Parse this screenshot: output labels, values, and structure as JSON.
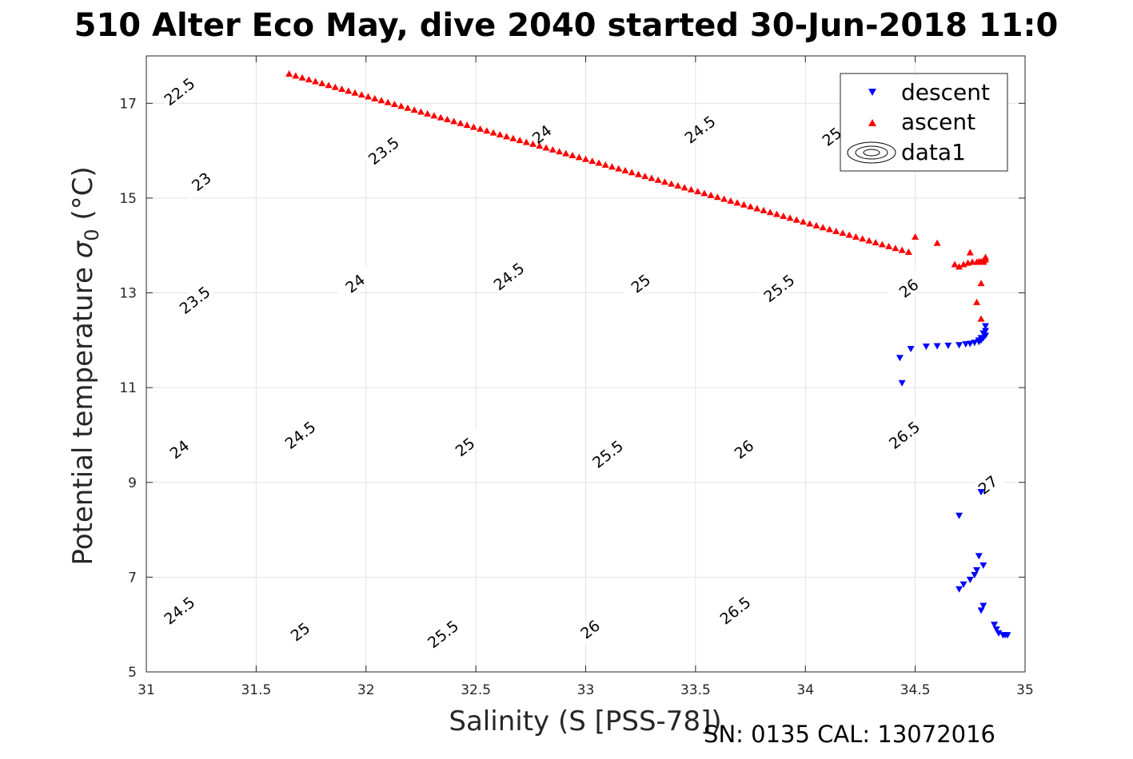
{
  "colors": {
    "descent": "#0000ff",
    "ascent": "#ff0000",
    "contour": "#000000",
    "grid": "#e3e3e3",
    "axis": "#262626"
  },
  "chart_data": {
    "type": "scatter",
    "title": "510 Alter Eco May, dive 2040 started 30-Jun-2018 11:0",
    "xlabel": "Salinity (S [PSS-78])",
    "ylabel_main": "Potential temperature ",
    "ylabel_symbol": "σ",
    "ylabel_sub": "0",
    "ylabel_unit": " (°C)",
    "footer": "SN: 0135  CAL: 13072016",
    "xlim": [
      31,
      35
    ],
    "ylim": [
      5,
      18
    ],
    "xticks": [
      31,
      31.5,
      32,
      32.5,
      33,
      33.5,
      34,
      34.5,
      35
    ],
    "yticks": [
      5,
      7,
      9,
      11,
      13,
      15,
      17
    ],
    "xtick_labels": [
      "31",
      "31.5",
      "32",
      "32.5",
      "33",
      "33.5",
      "34",
      "34.5",
      "35"
    ],
    "ytick_labels": [
      "5",
      "7",
      "9",
      "11",
      "13",
      "15",
      "17"
    ],
    "grid": true,
    "legend_position": "top-right",
    "contour_levels": [
      22.5,
      23,
      23.5,
      24,
      24.5,
      25,
      25.5,
      26,
      26.5,
      27
    ],
    "contour_labels": [
      {
        "text": "22.5",
        "s": 31.15,
        "t": 17.25
      },
      {
        "text": "23",
        "s": 31.25,
        "t": 15.35
      },
      {
        "text": "23.5",
        "s": 31.22,
        "t": 12.85
      },
      {
        "text": "24",
        "s": 31.15,
        "t": 9.7
      },
      {
        "text": "24.5",
        "s": 31.15,
        "t": 6.3
      },
      {
        "text": "23.5",
        "s": 32.08,
        "t": 16.0
      },
      {
        "text": "24",
        "s": 31.95,
        "t": 13.2
      },
      {
        "text": "24.5",
        "s": 31.7,
        "t": 10.0
      },
      {
        "text": "25",
        "s": 31.7,
        "t": 5.85
      },
      {
        "text": "24",
        "s": 32.8,
        "t": 16.35
      },
      {
        "text": "24.5",
        "s": 32.65,
        "t": 13.35
      },
      {
        "text": "25",
        "s": 32.45,
        "t": 9.75
      },
      {
        "text": "25.5",
        "s": 32.35,
        "t": 5.8
      },
      {
        "text": "24.5",
        "s": 33.52,
        "t": 16.45
      },
      {
        "text": "25",
        "s": 33.25,
        "t": 13.2
      },
      {
        "text": "25.5",
        "s": 33.1,
        "t": 9.6
      },
      {
        "text": "26",
        "s": 33.02,
        "t": 5.9
      },
      {
        "text": "25",
        "s": 34.12,
        "t": 16.3
      },
      {
        "text": "25.5",
        "s": 33.88,
        "t": 13.1
      },
      {
        "text": "26",
        "s": 33.72,
        "t": 9.7
      },
      {
        "text": "26.5",
        "s": 33.68,
        "t": 6.3
      },
      {
        "text": "26",
        "s": 34.47,
        "t": 13.1
      },
      {
        "text": "26.5",
        "s": 34.45,
        "t": 10.0
      },
      {
        "text": "27",
        "s": 34.83,
        "t": 8.95
      }
    ],
    "series": [
      {
        "name": "descent",
        "marker": "triangle-down",
        "color": "#0000ff",
        "x": [
          34.43,
          34.44,
          34.48,
          34.55,
          34.6,
          34.65,
          34.7,
          34.73,
          34.75,
          34.77,
          34.79,
          34.8,
          34.81,
          34.82,
          34.82,
          34.82,
          34.81,
          34.8,
          34.79,
          34.8,
          34.7,
          34.79,
          34.81,
          34.78,
          34.77,
          34.75,
          34.72,
          34.7,
          34.81,
          34.8,
          34.86,
          34.87,
          34.88,
          34.9,
          34.91,
          34.92
        ],
        "y": [
          11.63,
          11.1,
          11.82,
          11.87,
          11.88,
          11.89,
          11.9,
          11.92,
          11.93,
          11.95,
          11.97,
          12.0,
          12.05,
          12.1,
          12.2,
          12.3,
          12.15,
          12.05,
          12.0,
          8.8,
          8.3,
          7.45,
          7.25,
          7.15,
          7.05,
          6.95,
          6.85,
          6.75,
          6.4,
          6.3,
          6.0,
          5.9,
          5.82,
          5.78,
          5.78,
          5.78
        ]
      },
      {
        "name": "ascent",
        "marker": "triangle-up",
        "color": "#ff0000",
        "x": [
          31.65,
          31.68,
          31.71,
          31.74,
          31.77,
          31.8,
          31.83,
          31.86,
          31.89,
          31.92,
          31.95,
          31.98,
          32.01,
          32.04,
          32.07,
          32.1,
          32.13,
          32.16,
          32.19,
          32.22,
          32.25,
          32.28,
          32.31,
          32.34,
          32.37,
          32.4,
          32.43,
          32.46,
          32.49,
          32.52,
          32.55,
          32.58,
          32.61,
          32.64,
          32.67,
          32.7,
          32.73,
          32.76,
          32.79,
          32.82,
          32.85,
          32.88,
          32.91,
          32.94,
          32.97,
          33.0,
          33.03,
          33.06,
          33.09,
          33.12,
          33.15,
          33.18,
          33.21,
          33.24,
          33.27,
          33.3,
          33.33,
          33.36,
          33.39,
          33.42,
          33.45,
          33.48,
          33.51,
          33.54,
          33.57,
          33.6,
          33.63,
          33.66,
          33.69,
          33.72,
          33.75,
          33.78,
          33.81,
          33.84,
          33.87,
          33.9,
          33.93,
          33.96,
          33.99,
          34.02,
          34.05,
          34.08,
          34.11,
          34.14,
          34.17,
          34.2,
          34.23,
          34.26,
          34.29,
          34.32,
          34.35,
          34.38,
          34.41,
          34.44,
          34.47,
          34.5,
          34.6,
          34.68,
          34.7,
          34.72,
          34.74,
          34.76,
          34.78,
          34.79,
          34.8,
          34.81,
          34.82,
          34.82,
          34.81,
          34.8,
          34.78,
          34.75,
          34.8
        ],
        "y": [
          17.62,
          17.58,
          17.54,
          17.5,
          17.46,
          17.42,
          17.38,
          17.34,
          17.3,
          17.26,
          17.22,
          17.18,
          17.14,
          17.1,
          17.06,
          17.02,
          16.98,
          16.94,
          16.9,
          16.86,
          16.82,
          16.78,
          16.74,
          16.7,
          16.66,
          16.62,
          16.58,
          16.54,
          16.5,
          16.46,
          16.42,
          16.38,
          16.34,
          16.3,
          16.26,
          16.22,
          16.18,
          16.14,
          16.1,
          16.06,
          16.02,
          15.98,
          15.94,
          15.9,
          15.86,
          15.82,
          15.78,
          15.74,
          15.7,
          15.66,
          15.62,
          15.58,
          15.54,
          15.5,
          15.46,
          15.42,
          15.38,
          15.34,
          15.3,
          15.26,
          15.22,
          15.18,
          15.14,
          15.1,
          15.06,
          15.02,
          14.98,
          14.94,
          14.9,
          14.86,
          14.82,
          14.78,
          14.74,
          14.7,
          14.66,
          14.62,
          14.58,
          14.54,
          14.5,
          14.46,
          14.42,
          14.38,
          14.34,
          14.3,
          14.26,
          14.22,
          14.18,
          14.14,
          14.1,
          14.06,
          14.02,
          13.98,
          13.94,
          13.9,
          13.86,
          14.18,
          14.05,
          13.6,
          13.55,
          13.6,
          13.63,
          13.65,
          13.65,
          13.66,
          13.66,
          13.68,
          13.7,
          13.75,
          13.65,
          13.2,
          12.8,
          13.85,
          12.45
        ]
      },
      {
        "name": "data1",
        "marker": "contour",
        "color": "#000000",
        "x": [],
        "y": []
      }
    ]
  }
}
